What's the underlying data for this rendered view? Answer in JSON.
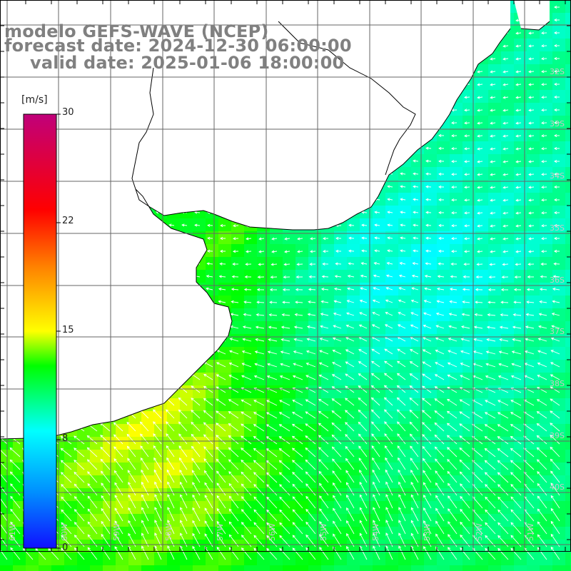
{
  "title": {
    "line1": "modelo GEFS-WAVE (NCEP)",
    "line2": "forecast date: 2024-12-30 06:00:00",
    "line3": "valid date: 2025-01-06 18:00:00"
  },
  "colorbar": {
    "unit": "[m/s]",
    "ticks": [
      "30",
      "22",
      "15",
      "8",
      "0"
    ],
    "min": 0,
    "max": 30,
    "colors": [
      "#1010ff",
      "#00a0ff",
      "#00ffff",
      "#00ff00",
      "#ffff00",
      "#ff8000",
      "#ff0000",
      "#c0007a"
    ]
  },
  "map": {
    "lat_labels": [
      "32S",
      "33S",
      "34S",
      "35S",
      "36S",
      "37S",
      "38S",
      "39S",
      "40S"
    ],
    "lon_labels": [
      "61W",
      "60W",
      "59W",
      "58W",
      "57W",
      "56W",
      "55W",
      "54W",
      "53W",
      "52W",
      "51W"
    ],
    "land_color": "#ffffff",
    "wind_field": "northeasterly, speed mostly 8–12 m/s"
  }
}
